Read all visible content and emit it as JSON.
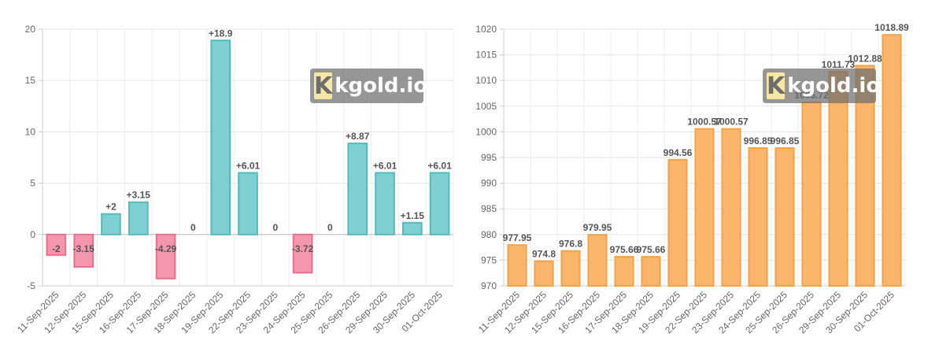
{
  "watermark": {
    "k_letter": "K",
    "text": "kgold.io"
  },
  "chart_data": [
    {
      "type": "bar",
      "categories": [
        "11-Sep-2025",
        "12-Sep-2025",
        "15-Sep-2025",
        "16-Sep-2025",
        "17-Sep-2025",
        "18-Sep-2025",
        "19-Sep-2025",
        "22-Sep-2025",
        "23-Sep-2025",
        "24-Sep-2025",
        "25-Sep-2025",
        "26-Sep-2025",
        "29-Sep-2025",
        "30-Sep-2025",
        "01-Oct-2025"
      ],
      "values": [
        -2,
        -3.15,
        2,
        3.15,
        -4.29,
        0,
        18.9,
        6.01,
        0,
        -3.72,
        0,
        8.87,
        6.01,
        1.15,
        6.01
      ],
      "data_labels": [
        "-2",
        "-3.15",
        "+2",
        "+3.15",
        "-4.29",
        "0",
        "+18.9",
        "+6.01",
        "0",
        "-3.72",
        "0",
        "+8.87",
        "+6.01",
        "+1.15",
        "+6.01"
      ],
      "ylim": [
        -5,
        20
      ],
      "yticks": [
        -5,
        0,
        5,
        10,
        15,
        20
      ],
      "grid": true,
      "colors": {
        "positive_fill": "#7fd0d0",
        "positive_stroke": "#52bcbc",
        "negative_fill": "#f497ad",
        "negative_stroke": "#ec6f8d"
      }
    },
    {
      "type": "bar",
      "categories": [
        "11-Sep-2025",
        "12-Sep-2025",
        "15-Sep-2025",
        "16-Sep-2025",
        "17-Sep-2025",
        "18-Sep-2025",
        "19-Sep-2025",
        "22-Sep-2025",
        "23-Sep-2025",
        "24-Sep-2025",
        "25-Sep-2025",
        "26-Sep-2025",
        "29-Sep-2025",
        "30-Sep-2025",
        "01-Oct-2025"
      ],
      "values": [
        977.95,
        974.8,
        976.8,
        979.95,
        975.66,
        975.66,
        994.56,
        1000.57,
        1000.57,
        996.85,
        996.85,
        1005.72,
        1011.73,
        1012.88,
        1018.89
      ],
      "data_labels": [
        "977.95",
        "974.8",
        "976.8",
        "979.95",
        "975.66",
        "975.66",
        "994.56",
        "1000.57",
        "1000.57",
        "996.85",
        "996.85",
        "1005.72",
        "1011.73",
        "1012.88",
        "1018.89"
      ],
      "ylim": [
        970,
        1020
      ],
      "yticks": [
        970,
        975,
        980,
        985,
        990,
        995,
        1000,
        1005,
        1010,
        1015,
        1020
      ],
      "grid": true,
      "colors": {
        "fill": "#fbb66c",
        "stroke": "#f4a247"
      }
    }
  ]
}
